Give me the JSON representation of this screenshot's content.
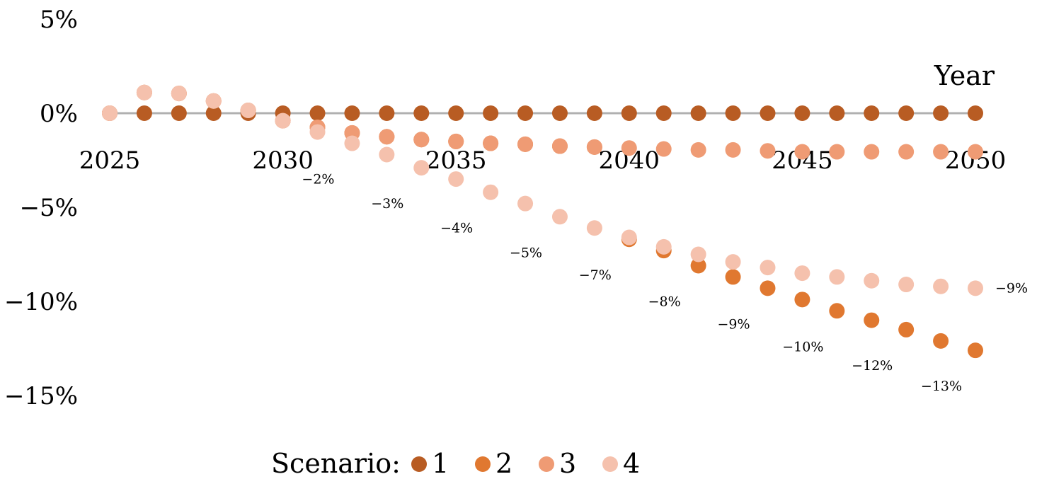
{
  "chart_data": {
    "type": "scatter",
    "title": "",
    "xlabel": "Year",
    "ylabel": "",
    "xlim": [
      2025,
      2050
    ],
    "ylim": [
      -15,
      5
    ],
    "x_ticks": [
      "2025",
      "2030",
      "2035",
      "2040",
      "2045",
      "2050"
    ],
    "y_ticks": [
      {
        "value": 5,
        "label": "5%"
      },
      {
        "value": 0,
        "label": "0%"
      },
      {
        "value": -5,
        "label": "−5%"
      },
      {
        "value": -10,
        "label": "−10%"
      },
      {
        "value": -15,
        "label": "−15%"
      }
    ],
    "grid": false,
    "legend": {
      "title": "Scenario:",
      "placement": "bottom-center"
    },
    "x": [
      2025,
      2026,
      2027,
      2028,
      2029,
      2030,
      2031,
      2032,
      2033,
      2034,
      2035,
      2036,
      2037,
      2038,
      2039,
      2040,
      2041,
      2042,
      2043,
      2044,
      2045,
      2046,
      2047,
      2048,
      2049,
      2050
    ],
    "series": [
      {
        "name": "1",
        "color": "#b85c23",
        "values": [
          0,
          0,
          0,
          0,
          0,
          0,
          0,
          0,
          0,
          0,
          0,
          0,
          0,
          0,
          0,
          0,
          0,
          0,
          0,
          0,
          0,
          0,
          0,
          0,
          0,
          0
        ]
      },
      {
        "name": "2",
        "color": "#e07830",
        "values": [
          0,
          1.1,
          1.05,
          0.65,
          0.15,
          -0.4,
          -0.75,
          -1.05,
          -1.25,
          -1.4,
          -1.5,
          -1.6,
          -1.65,
          -1.75,
          -1.8,
          -6.7,
          -7.3,
          -8.1,
          -8.7,
          -9.3,
          -9.9,
          -10.5,
          -11.0,
          -11.5,
          -12.1,
          -12.6
        ]
      },
      {
        "name": "3",
        "color": "#ef9b74",
        "values": [
          0,
          1.1,
          1.05,
          0.65,
          0.15,
          -0.4,
          -0.75,
          -1.05,
          -1.25,
          -1.4,
          -1.5,
          -1.6,
          -1.65,
          -1.75,
          -1.8,
          -1.85,
          -1.9,
          -1.95,
          -1.95,
          -2.0,
          -2.05,
          -2.05,
          -2.05,
          -2.05,
          -2.05,
          -2.05
        ]
      },
      {
        "name": "4",
        "color": "#f5c1ad",
        "values": [
          0,
          1.1,
          1.05,
          0.65,
          0.15,
          -0.4,
          -1.0,
          -1.6,
          -2.2,
          -2.9,
          -3.5,
          -4.2,
          -4.8,
          -5.5,
          -6.1,
          -6.6,
          -7.1,
          -7.5,
          -7.9,
          -8.2,
          -8.5,
          -8.7,
          -8.9,
          -9.1,
          -9.2,
          -9.3
        ]
      }
    ],
    "data_labels": [
      {
        "x": 2032,
        "text": "−2%"
      },
      {
        "x": 2034,
        "text": "−3%"
      },
      {
        "x": 2036,
        "text": "−4%"
      },
      {
        "x": 2038,
        "text": "−5%"
      },
      {
        "x": 2040,
        "text": "−7%"
      },
      {
        "x": 2042,
        "text": "−8%"
      },
      {
        "x": 2044,
        "text": "−9%"
      },
      {
        "x": 2046,
        "text": "−10%"
      },
      {
        "x": 2048,
        "text": "−12%"
      },
      {
        "x": 2050,
        "text": "−13%"
      },
      {
        "x": 2051,
        "text": "−9%",
        "series": "4"
      }
    ]
  }
}
